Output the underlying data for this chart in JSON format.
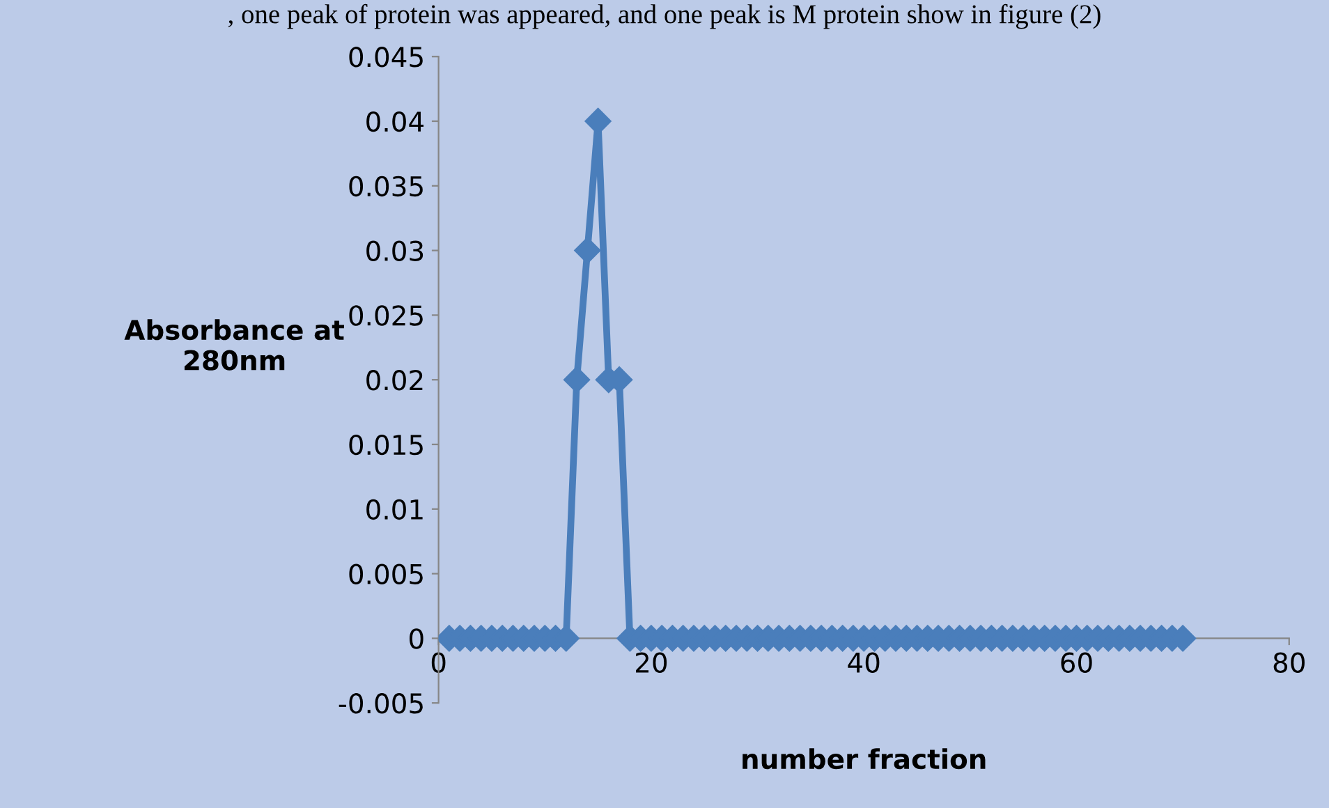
{
  "chart_data": {
    "type": "line",
    "annotations": [
      ", one peak of protein was appeared, and one peak is M protein show in figure (2)"
    ],
    "xlabel": "number fraction",
    "ylabel": "Absorbance at\n280nm",
    "x": [
      1,
      2,
      3,
      4,
      5,
      6,
      7,
      8,
      9,
      10,
      11,
      12,
      13,
      14,
      15,
      16,
      17,
      18,
      19,
      20,
      21,
      22,
      23,
      24,
      25,
      26,
      27,
      28,
      29,
      30,
      31,
      32,
      33,
      34,
      35,
      36,
      37,
      38,
      39,
      40,
      41,
      42,
      43,
      44,
      45,
      46,
      47,
      48,
      49,
      50,
      51,
      52,
      53,
      54,
      55,
      56,
      57,
      58,
      59,
      60,
      61,
      62,
      63,
      64,
      65,
      66,
      67,
      68,
      69,
      70
    ],
    "series": [
      {
        "color": "#4a7ebb",
        "values": [
          0,
          0,
          0,
          0,
          0,
          0,
          0,
          0,
          0,
          0,
          0,
          0,
          0.02,
          0.03,
          0.04,
          0.02,
          0.02,
          0,
          0,
          0,
          0,
          0,
          0,
          0,
          0,
          0,
          0,
          0,
          0,
          0,
          0,
          0,
          0,
          0,
          0,
          0,
          0,
          0,
          0,
          0,
          0,
          0,
          0,
          0,
          0,
          0,
          0,
          0,
          0,
          0,
          0,
          0,
          0,
          0,
          0,
          0,
          0,
          0,
          0,
          0,
          0,
          0,
          0,
          0,
          0,
          0,
          0,
          0,
          0,
          0
        ]
      }
    ],
    "xlim": [
      0,
      80
    ],
    "xticks": [
      0,
      20,
      40,
      60,
      80
    ],
    "ylim": [
      -0.005,
      0.045
    ],
    "yticks": [
      -0.005,
      0,
      0.005,
      0.01,
      0.015,
      0.02,
      0.025,
      0.03,
      0.035,
      0.04,
      0.045
    ],
    "marker": "diamond",
    "line_style": "solid"
  }
}
